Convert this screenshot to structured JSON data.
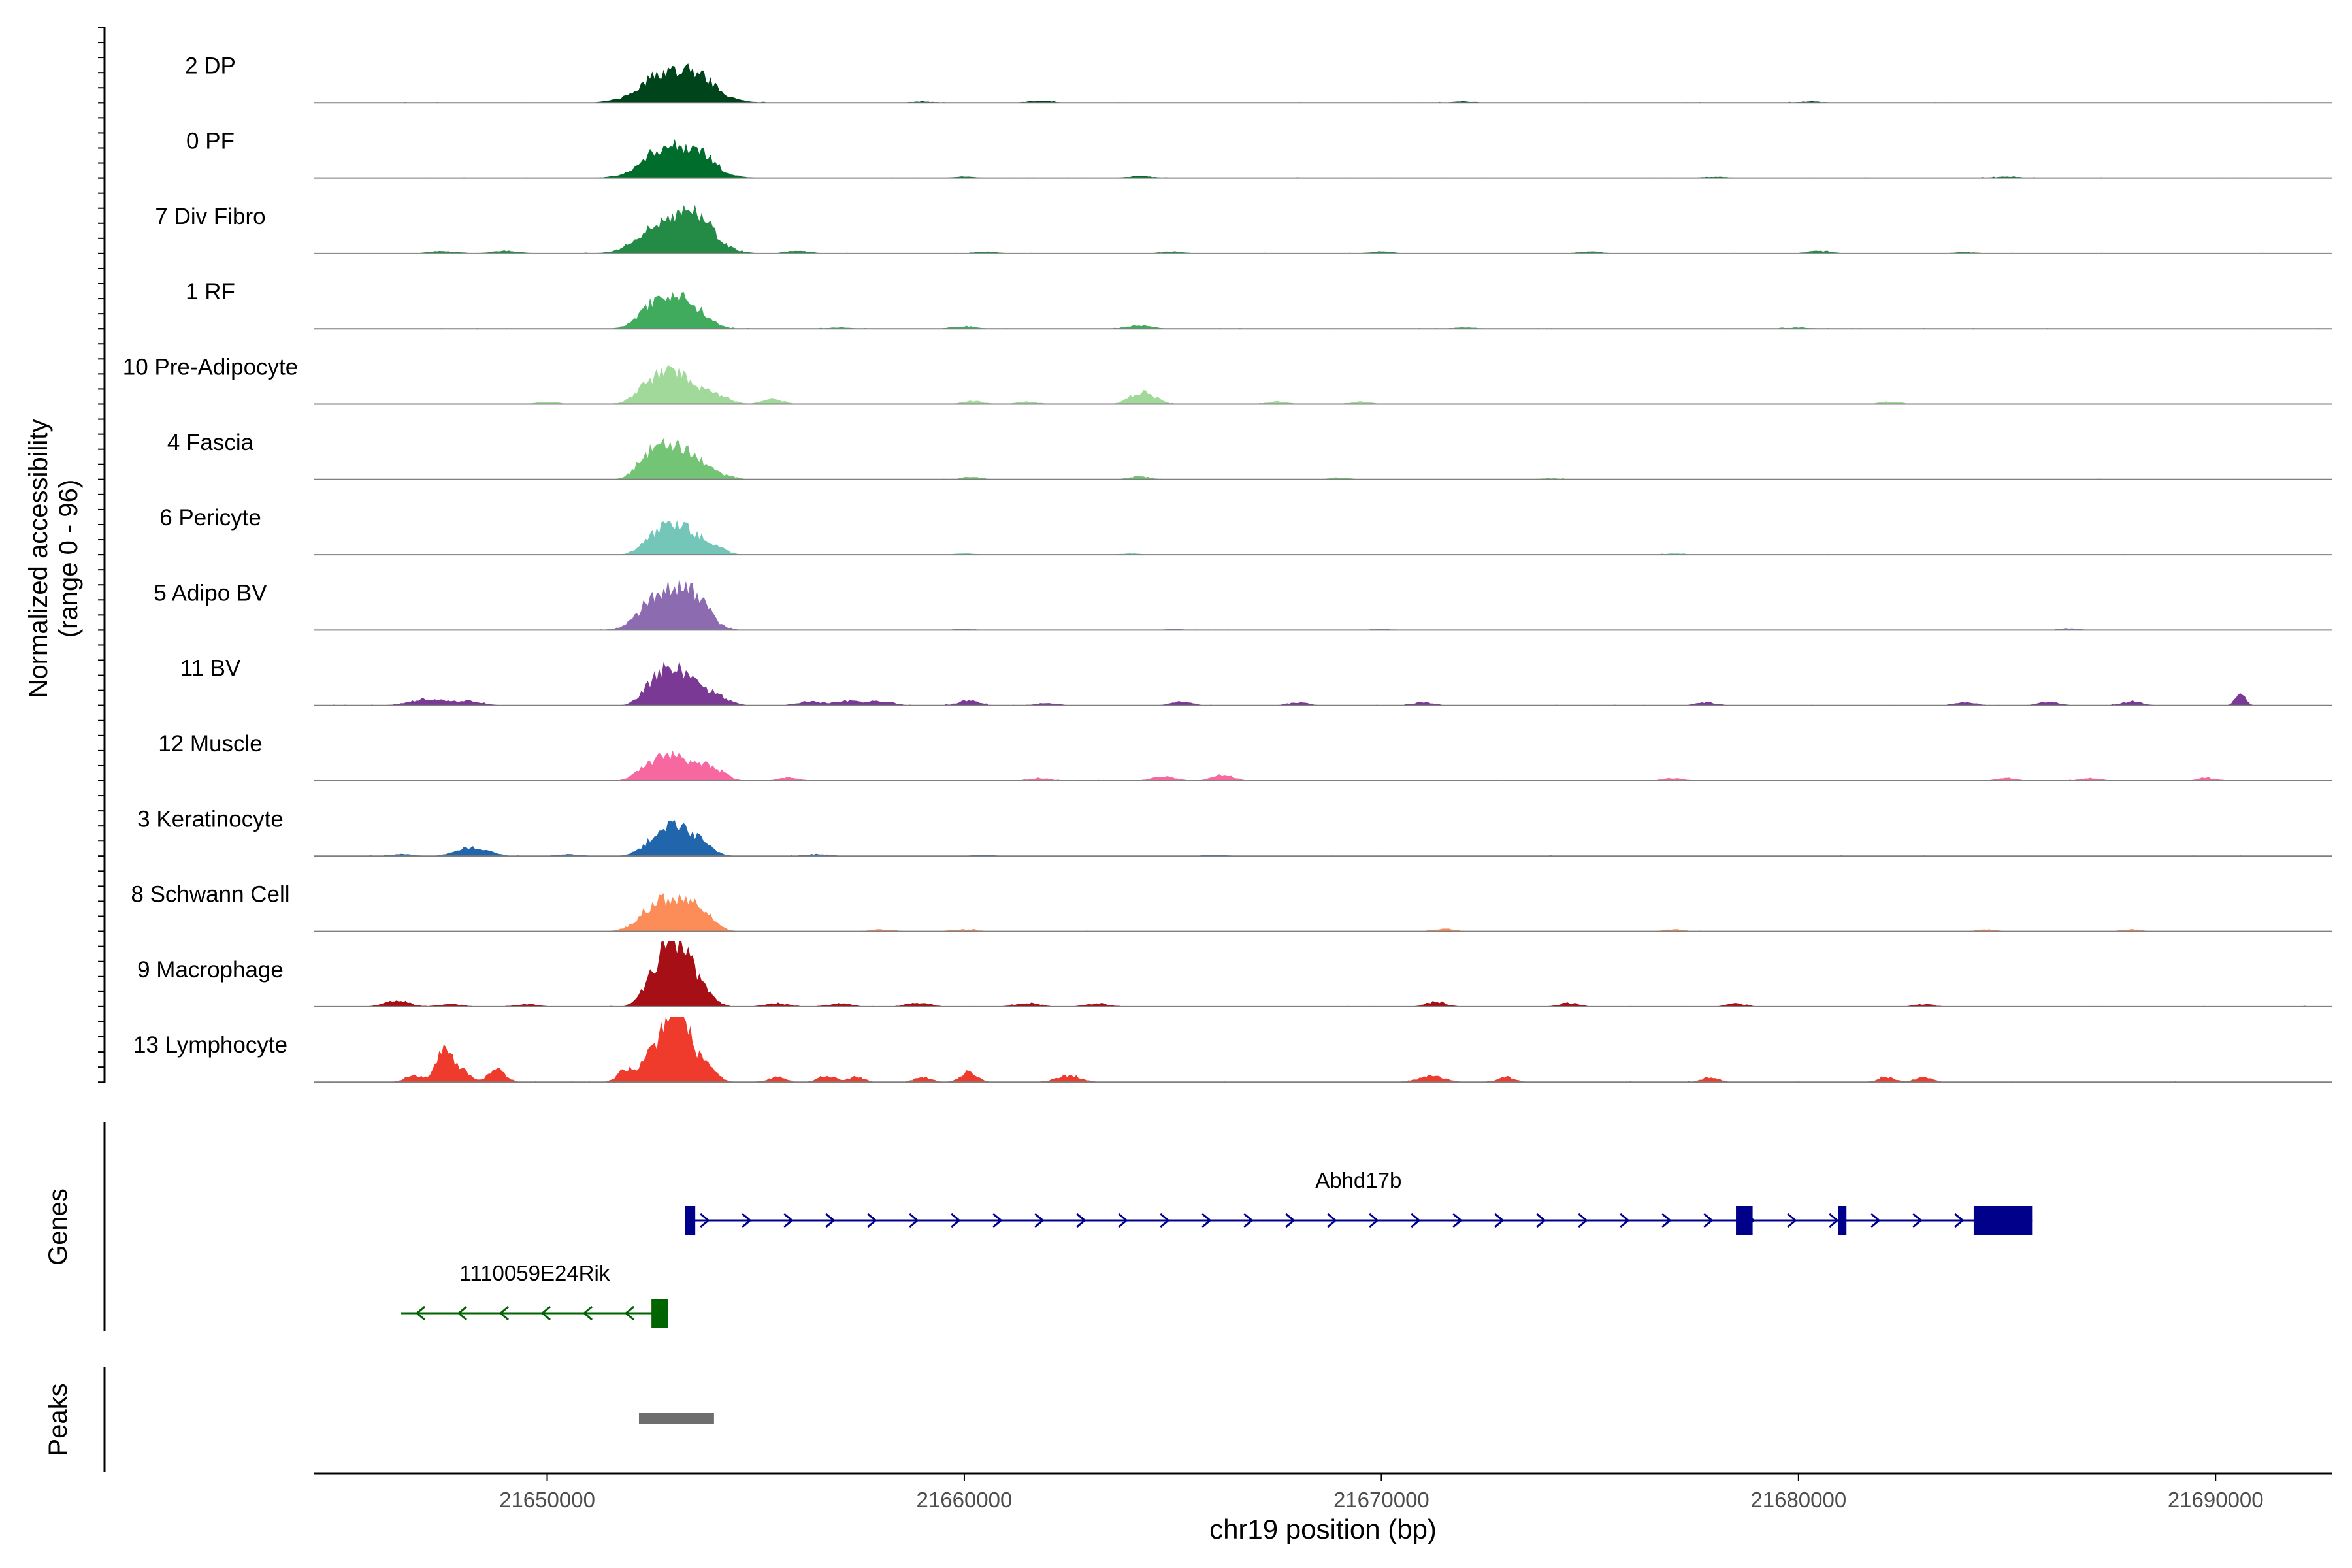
{
  "chart_data": {
    "type": "area",
    "title": "",
    "ylabel_line1": "Normalized accessibility",
    "ylabel_line2": "(range 0 - 96)",
    "xlabel": "chr19 position (bp)",
    "xlim": [
      21644400,
      21692800
    ],
    "ylim": [
      0,
      96
    ],
    "x_ticks": [
      21650000,
      21660000,
      21670000,
      21680000,
      21690000
    ],
    "x_tick_labels": [
      "21650000",
      "21660000",
      "21670000",
      "21680000",
      "21690000"
    ],
    "series": [
      {
        "name": "2 DP",
        "color": "#00441b",
        "peaks": [
          [
            21653100,
            48,
            700
          ],
          [
            21653700,
            12,
            300
          ],
          [
            21652600,
            8,
            300
          ],
          [
            21661800,
            3,
            300
          ],
          [
            21659000,
            2,
            300
          ],
          [
            21672000,
            2,
            300
          ],
          [
            21680300,
            2,
            300
          ]
        ]
      },
      {
        "name": "0 PF",
        "color": "#006d2c",
        "peaks": [
          [
            21653100,
            46,
            650
          ],
          [
            21653700,
            14,
            300
          ],
          [
            21652600,
            10,
            300
          ],
          [
            21664200,
            3,
            300
          ],
          [
            21660000,
            2,
            300
          ],
          [
            21678000,
            2,
            300
          ],
          [
            21685000,
            2,
            300
          ]
        ]
      },
      {
        "name": "7 Div Fibro",
        "color": "#238b45",
        "peaks": [
          [
            21653100,
            64,
            650
          ],
          [
            21653700,
            20,
            300
          ],
          [
            21647500,
            4,
            350
          ],
          [
            21649000,
            4,
            350
          ],
          [
            21656000,
            4,
            300
          ],
          [
            21660500,
            3,
            300
          ],
          [
            21665000,
            3,
            300
          ],
          [
            21670000,
            3,
            300
          ],
          [
            21675000,
            3,
            300
          ],
          [
            21680500,
            4,
            300
          ],
          [
            21684000,
            2,
            300
          ]
        ]
      },
      {
        "name": "1 RF",
        "color": "#41ab5d",
        "peaks": [
          [
            21653100,
            46,
            450
          ],
          [
            21652500,
            24,
            350
          ],
          [
            21653700,
            10,
            300
          ],
          [
            21660000,
            4,
            300
          ],
          [
            21664200,
            5,
            300
          ],
          [
            21657000,
            2,
            300
          ],
          [
            21672000,
            2,
            300
          ],
          [
            21680000,
            2,
            300
          ]
        ]
      },
      {
        "name": "10 Pre-Adipocyte",
        "color": "#a1d99b",
        "peaks": [
          [
            21653000,
            52,
            350
          ],
          [
            21652400,
            24,
            300
          ],
          [
            21653700,
            18,
            300
          ],
          [
            21654200,
            10,
            250
          ],
          [
            21655400,
            8,
            250
          ],
          [
            21664200,
            18,
            250
          ],
          [
            21664600,
            6,
            200
          ],
          [
            21650000,
            4,
            250
          ],
          [
            21660200,
            5,
            250
          ],
          [
            21661500,
            4,
            250
          ],
          [
            21667500,
            4,
            250
          ],
          [
            21669500,
            4,
            250
          ],
          [
            21682200,
            4,
            250
          ]
        ]
      },
      {
        "name": "4 Fascia",
        "color": "#74c476",
        "peaks": [
          [
            21652700,
            40,
            320
          ],
          [
            21653300,
            42,
            320
          ],
          [
            21652300,
            18,
            250
          ],
          [
            21653800,
            12,
            250
          ],
          [
            21654300,
            5,
            250
          ],
          [
            21660200,
            4,
            250
          ],
          [
            21664200,
            5,
            250
          ],
          [
            21669000,
            3,
            250
          ],
          [
            21674000,
            2,
            250
          ]
        ]
      },
      {
        "name": "6 Pericyte",
        "color": "#74c7b8",
        "peaks": [
          [
            21652950,
            44,
            360
          ],
          [
            21653550,
            24,
            300
          ],
          [
            21652400,
            12,
            250
          ],
          [
            21654100,
            8,
            250
          ],
          [
            21660000,
            2,
            250
          ],
          [
            21664000,
            2,
            250
          ],
          [
            21677000,
            2,
            250
          ]
        ]
      },
      {
        "name": "5 Adipo BV",
        "color": "#8c6bb1",
        "peaks": [
          [
            21653000,
            60,
            550
          ],
          [
            21653600,
            24,
            300
          ],
          [
            21652500,
            14,
            300
          ],
          [
            21660000,
            2,
            250
          ],
          [
            21665000,
            2,
            250
          ],
          [
            21670000,
            2,
            250
          ],
          [
            21686500,
            3,
            250
          ]
        ]
      },
      {
        "name": "11 BV",
        "color": "#7a3994",
        "peaks": [
          [
            21653100,
            46,
            300
          ],
          [
            21652600,
            36,
            300
          ],
          [
            21653600,
            22,
            300
          ],
          [
            21654100,
            12,
            300
          ],
          [
            21647200,
            10,
            450
          ],
          [
            21648200,
            6,
            300
          ],
          [
            21656300,
            6,
            300
          ],
          [
            21657200,
            7,
            300
          ],
          [
            21658000,
            7,
            300
          ],
          [
            21660100,
            8,
            250
          ],
          [
            21665200,
            6,
            250
          ],
          [
            21668000,
            5,
            250
          ],
          [
            21671000,
            5,
            250
          ],
          [
            21677800,
            5,
            250
          ],
          [
            21684000,
            5,
            250
          ],
          [
            21686000,
            6,
            250
          ],
          [
            21688000,
            6,
            250
          ],
          [
            21690600,
            20,
            120
          ],
          [
            21662000,
            4,
            250
          ]
        ]
      },
      {
        "name": "12 Muscle",
        "color": "#f768a1",
        "peaks": [
          [
            21652900,
            40,
            320
          ],
          [
            21653600,
            24,
            300
          ],
          [
            21652300,
            14,
            250
          ],
          [
            21654100,
            12,
            250
          ],
          [
            21666200,
            10,
            250
          ],
          [
            21664800,
            6,
            300
          ],
          [
            21655800,
            5,
            250
          ],
          [
            21661800,
            4,
            250
          ],
          [
            21677000,
            4,
            250
          ],
          [
            21685000,
            4,
            250
          ],
          [
            21687000,
            4,
            250
          ],
          [
            21689800,
            4,
            250
          ]
        ]
      },
      {
        "name": "3 Keratinocyte",
        "color": "#2166ac",
        "peaks": [
          [
            21653100,
            44,
            420
          ],
          [
            21648200,
            14,
            380
          ],
          [
            21652500,
            12,
            300
          ],
          [
            21653700,
            10,
            300
          ],
          [
            21646500,
            3,
            300
          ],
          [
            21650500,
            3,
            300
          ],
          [
            21656500,
            3,
            300
          ],
          [
            21660500,
            2,
            300
          ],
          [
            21666000,
            2,
            300
          ]
        ]
      },
      {
        "name": "8 Schwann Cell",
        "color": "#fc8d59",
        "peaks": [
          [
            21653000,
            50,
            500
          ],
          [
            21653700,
            18,
            300
          ],
          [
            21652400,
            12,
            300
          ],
          [
            21658000,
            3,
            300
          ],
          [
            21660000,
            3,
            300
          ],
          [
            21671500,
            4,
            250
          ],
          [
            21677000,
            3,
            250
          ],
          [
            21684500,
            3,
            250
          ],
          [
            21688000,
            3,
            250
          ]
        ]
      },
      {
        "name": "9 Macrophage",
        "color": "#a50f15",
        "peaks": [
          [
            21652900,
            78,
            220
          ],
          [
            21653300,
            80,
            240
          ],
          [
            21652500,
            40,
            250
          ],
          [
            21653800,
            20,
            250
          ],
          [
            21646400,
            10,
            300
          ],
          [
            21647700,
            4,
            300
          ],
          [
            21649500,
            4,
            300
          ],
          [
            21655500,
            5,
            300
          ],
          [
            21657000,
            5,
            300
          ],
          [
            21658900,
            6,
            300
          ],
          [
            21661500,
            6,
            300
          ],
          [
            21663200,
            5,
            300
          ],
          [
            21671300,
            8,
            250
          ],
          [
            21674500,
            6,
            250
          ],
          [
            21678500,
            5,
            250
          ],
          [
            21683000,
            4,
            250
          ]
        ]
      },
      {
        "name": "13 Lymphocyte",
        "color": "#ef3b2c",
        "peaks": [
          [
            21652950,
            88,
            200
          ],
          [
            21653300,
            80,
            220
          ],
          [
            21652500,
            45,
            220
          ],
          [
            21653800,
            24,
            250
          ],
          [
            21651900,
            20,
            200
          ],
          [
            21647500,
            50,
            180
          ],
          [
            21647900,
            22,
            220
          ],
          [
            21648800,
            20,
            200
          ],
          [
            21646800,
            12,
            200
          ],
          [
            21660100,
            16,
            200
          ],
          [
            21655500,
            8,
            200
          ],
          [
            21656700,
            10,
            200
          ],
          [
            21657400,
            8,
            200
          ],
          [
            21659000,
            8,
            200
          ],
          [
            21662500,
            10,
            300
          ],
          [
            21671200,
            10,
            300
          ],
          [
            21673000,
            8,
            200
          ],
          [
            21677900,
            8,
            200
          ],
          [
            21682100,
            8,
            200
          ],
          [
            21683000,
            8,
            200
          ]
        ]
      }
    ],
    "genes": [
      {
        "name": "Abhd17b",
        "color": "#00008b",
        "strand": "+",
        "start": 21653300,
        "end": 21685600,
        "exons": [
          [
            21653300,
            21653550
          ],
          [
            21678500,
            21678900
          ],
          [
            21680950,
            21681150
          ],
          [
            21684200,
            21685600
          ]
        ]
      },
      {
        "name": "1110059E24Rik",
        "color": "#006400",
        "strand": "-",
        "start": 21646500,
        "end": 21652900,
        "exons": [
          [
            21652500,
            21652900
          ]
        ]
      }
    ],
    "peaks_track": [
      [
        21652200,
        21654000
      ]
    ],
    "panel_labels": {
      "genes": "Genes",
      "peaks": "Peaks"
    }
  }
}
